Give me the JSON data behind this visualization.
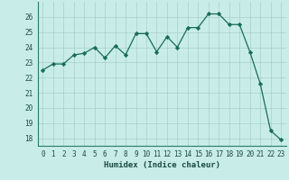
{
  "x": [
    0,
    1,
    2,
    3,
    4,
    5,
    6,
    7,
    8,
    9,
    10,
    11,
    12,
    13,
    14,
    15,
    16,
    17,
    18,
    19,
    20,
    21,
    22,
    23
  ],
  "y": [
    22.5,
    22.9,
    22.9,
    23.5,
    23.6,
    24.0,
    23.3,
    24.1,
    23.5,
    24.9,
    24.9,
    23.7,
    24.7,
    24.0,
    25.3,
    25.3,
    26.2,
    26.2,
    25.5,
    25.5,
    23.7,
    21.6,
    18.5,
    17.9
  ],
  "line_color": "#1a6b5a",
  "marker_color": "#1a6b5a",
  "bg_color": "#c8ede8",
  "grid_color": "#b0d4ce",
  "xlabel": "Humidex (Indice chaleur)",
  "ylabel": "",
  "xlim": [
    -0.5,
    23.5
  ],
  "ylim": [
    17.5,
    27.0
  ],
  "yticks": [
    18,
    19,
    20,
    21,
    22,
    23,
    24,
    25,
    26
  ],
  "xticks": [
    0,
    1,
    2,
    3,
    4,
    5,
    6,
    7,
    8,
    9,
    10,
    11,
    12,
    13,
    14,
    15,
    16,
    17,
    18,
    19,
    20,
    21,
    22,
    23
  ],
  "tick_fontsize": 5.5,
  "label_fontsize": 6.5
}
